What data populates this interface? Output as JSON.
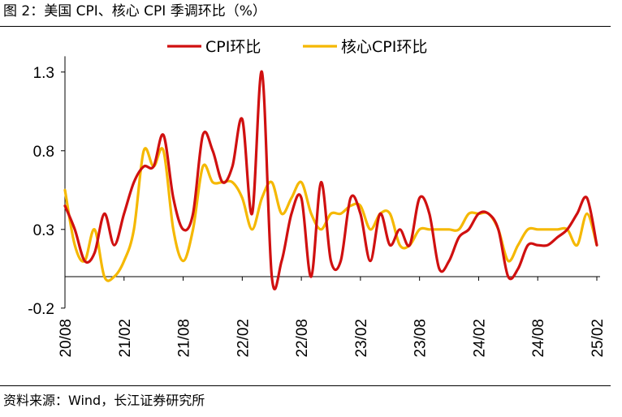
{
  "title": "图 2：美国 CPI、核心 CPI 季调环比（%）",
  "source": "资料来源：Wind，长江证券研究所",
  "chart_data": {
    "type": "line",
    "title": "图 2：美国 CPI、核心 CPI 季调环比（%）",
    "xlabel": "",
    "ylabel": "",
    "ylim": [
      -0.2,
      1.4
    ],
    "yticks": [
      1.3,
      0.8,
      0.3,
      -0.2
    ],
    "ytick_labels": [
      "1.3",
      "0.8",
      "0.3",
      "-0.2"
    ],
    "xtick_labels": [
      "20/08",
      "21/02",
      "21/08",
      "22/02",
      "22/08",
      "23/02",
      "23/08",
      "24/02",
      "24/08",
      "25/02"
    ],
    "x": [
      "20/08",
      "20/09",
      "20/10",
      "20/11",
      "20/12",
      "21/01",
      "21/02",
      "21/03",
      "21/04",
      "21/05",
      "21/06",
      "21/07",
      "21/08",
      "21/09",
      "21/10",
      "21/11",
      "21/12",
      "22/01",
      "22/02",
      "22/03",
      "22/04",
      "22/05",
      "22/06",
      "22/07",
      "22/08",
      "22/09",
      "22/10",
      "22/11",
      "22/12",
      "23/01",
      "23/02",
      "23/03",
      "23/04",
      "23/05",
      "23/06",
      "23/07",
      "23/08",
      "23/09",
      "23/10",
      "23/11",
      "23/12",
      "24/01",
      "24/02",
      "24/03",
      "24/04",
      "24/05",
      "24/06",
      "24/07",
      "24/08",
      "24/09",
      "24/10",
      "24/11",
      "24/12",
      "25/01",
      "25/02"
    ],
    "legend_position": "top",
    "grid": false,
    "series": [
      {
        "name": "CPI环比",
        "color": "#d01010",
        "values": [
          0.45,
          0.3,
          0.1,
          0.15,
          0.4,
          0.2,
          0.4,
          0.6,
          0.7,
          0.7,
          0.9,
          0.5,
          0.3,
          0.4,
          0.9,
          0.8,
          0.6,
          0.7,
          1.0,
          0.4,
          1.3,
          0.0,
          0.1,
          0.4,
          0.5,
          0.0,
          0.6,
          0.1,
          0.1,
          0.5,
          0.4,
          0.1,
          0.4,
          0.2,
          0.3,
          0.2,
          0.5,
          0.4,
          0.05,
          0.1,
          0.25,
          0.3,
          0.4,
          0.4,
          0.3,
          0.0,
          0.05,
          0.2,
          0.2,
          0.2,
          0.25,
          0.3,
          0.4,
          0.5,
          0.2
        ]
      },
      {
        "name": "核心CPI环比",
        "color": "#f5b800",
        "values": [
          0.55,
          0.2,
          0.1,
          0.3,
          0.0,
          0.0,
          0.1,
          0.3,
          0.8,
          0.7,
          0.8,
          0.3,
          0.1,
          0.3,
          0.7,
          0.6,
          0.6,
          0.6,
          0.5,
          0.3,
          0.5,
          0.6,
          0.4,
          0.5,
          0.6,
          0.4,
          0.3,
          0.4,
          0.4,
          0.45,
          0.45,
          0.3,
          0.4,
          0.4,
          0.2,
          0.2,
          0.3,
          0.3,
          0.3,
          0.3,
          0.3,
          0.4,
          0.4,
          0.4,
          0.3,
          0.1,
          0.2,
          0.3,
          0.3,
          0.3,
          0.3,
          0.3,
          0.2,
          0.4,
          0.2
        ]
      }
    ]
  }
}
